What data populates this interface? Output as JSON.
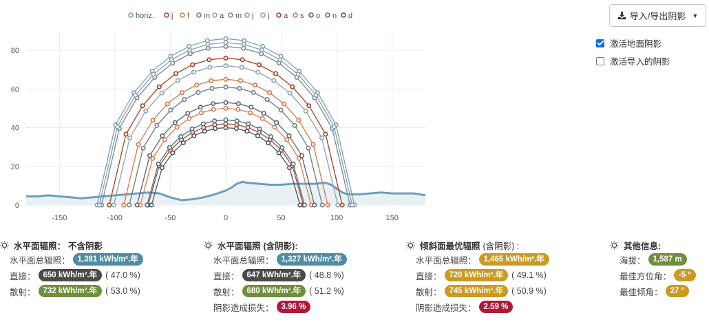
{
  "toolbar": {
    "export_label": "导入/导出阴影",
    "export_icon": "download-icon"
  },
  "options": [
    {
      "label": "激活地面阴影",
      "checked": true
    },
    {
      "label": "激活导入的阴影",
      "checked": false
    }
  ],
  "chart_data": {
    "type": "line",
    "xlim": [
      -180,
      180
    ],
    "ylim": [
      0,
      90
    ],
    "x_ticks": [
      -150,
      -100,
      -50,
      0,
      50,
      100,
      150
    ],
    "y_ticks": [
      0,
      20,
      40,
      60,
      80
    ],
    "legend": [
      "horiz.",
      "j",
      "f",
      "m",
      "a",
      "m",
      "j",
      "j",
      "a",
      "s",
      "o",
      "n",
      "d"
    ],
    "legend_colors": [
      "#6d9ebf",
      "#b5421f",
      "#d97a4a",
      "#6e7b80",
      "#8aa3b0",
      "#728894",
      "#78a0b8",
      "#8a9ea8",
      "#a63d1a",
      "#d8743c",
      "#566268",
      "#4c6e80",
      "#48535a"
    ],
    "horizon": {
      "x": [
        -180,
        -170,
        -160,
        -150,
        -140,
        -130,
        -120,
        -110,
        -100,
        -90,
        -80,
        -70,
        -60,
        -50,
        -40,
        -30,
        -20,
        -10,
        0,
        5,
        10,
        15,
        20,
        30,
        40,
        50,
        60,
        70,
        80,
        90,
        95,
        100,
        105,
        110,
        120,
        130,
        140,
        150,
        160,
        170,
        180
      ],
      "y": [
        4.5,
        4.5,
        5,
        4.5,
        4,
        3.5,
        4,
        4.5,
        5,
        5.5,
        6,
        6.5,
        6,
        4,
        2.5,
        3,
        4,
        5.5,
        7.5,
        9,
        11,
        12,
        11.5,
        11,
        10.5,
        10.5,
        11,
        11,
        11,
        11.5,
        10.5,
        8.5,
        6.5,
        5.5,
        5.5,
        6,
        6.5,
        6,
        6,
        6,
        5
      ]
    },
    "series": [
      {
        "name": "j",
        "azimuth_limit": 70,
        "max_elevation": 42
      },
      {
        "name": "f",
        "azimuth_limit": 77,
        "max_elevation": 50
      },
      {
        "name": "m",
        "azimuth_limit": 87,
        "max_elevation": 61
      },
      {
        "name": "a",
        "azimuth_limit": 101,
        "max_elevation": 72
      },
      {
        "name": "m",
        "azimuth_limit": 112,
        "max_elevation": 82
      },
      {
        "name": "j",
        "azimuth_limit": 116,
        "max_elevation": 86
      },
      {
        "name": "j",
        "azimuth_limit": 114,
        "max_elevation": 84
      },
      {
        "name": "a",
        "azimuth_limit": 105,
        "max_elevation": 76
      },
      {
        "name": "s",
        "azimuth_limit": 92,
        "max_elevation": 65
      },
      {
        "name": "o",
        "azimuth_limit": 80,
        "max_elevation": 53
      },
      {
        "name": "n",
        "azimuth_limit": 71,
        "max_elevation": 44
      },
      {
        "name": "d",
        "azimuth_limit": 67,
        "max_elevation": 40
      }
    ]
  },
  "columns": [
    {
      "title_bold": "水平面辐照：",
      "title_rest": "不含阴影",
      "rest_bold": true,
      "rows": [
        {
          "label": "水平面总辐照：",
          "value": "1,381 kWh/m².年",
          "color": "blue",
          "pct": ""
        },
        {
          "label": "直接：",
          "value": "650 kWh/m².年",
          "color": "dark",
          "pct": "( 47.0 %)"
        },
        {
          "label": "散射：",
          "value": "732 kWh/m².年",
          "color": "green",
          "pct": "( 53.0 %)"
        }
      ]
    },
    {
      "title_bold": "水平面辐照",
      "title_rest": "(含阴影):",
      "rest_bold": true,
      "rows": [
        {
          "label": "水平面总辐照：",
          "value": "1,327 kWh/m².年",
          "color": "blue",
          "pct": ""
        },
        {
          "label": "直接：",
          "value": "647 kWh/m².年",
          "color": "dark",
          "pct": "( 48.8 %)"
        },
        {
          "label": "散射：",
          "value": "680 kWh/m².年",
          "color": "green",
          "pct": "( 51.2 %)"
        },
        {
          "label": "阴影造成损失：",
          "value": "3.96 %",
          "color": "red",
          "pct": ""
        }
      ]
    },
    {
      "title_bold": "倾斜面最优辐照",
      "title_rest": "(含阴影) :",
      "rest_bold": false,
      "rows": [
        {
          "label": "水平面总辐照：",
          "value": "1,465 kWh/m².年",
          "color": "gold",
          "pct": ""
        },
        {
          "label": "直接：",
          "value": "720 kWh/m².年",
          "color": "gold",
          "pct": "( 49.1 %)"
        },
        {
          "label": "散射：",
          "value": "745 kWh/m².年",
          "color": "gold",
          "pct": "( 50.9 %)"
        },
        {
          "label": "阴影造成损失：",
          "value": "2.59 %",
          "color": "red",
          "pct": ""
        }
      ]
    },
    {
      "title_bold": "其他信息:",
      "title_rest": "",
      "rest_bold": false,
      "rows": [
        {
          "label": "海拔：",
          "value": "1,587 m",
          "color": "green",
          "pct": ""
        },
        {
          "label": "最佳方位角：",
          "value": "-5 °",
          "color": "gold",
          "pct": ""
        },
        {
          "label": "最佳倾角：",
          "value": "27 °",
          "color": "gold",
          "pct": ""
        }
      ]
    }
  ]
}
